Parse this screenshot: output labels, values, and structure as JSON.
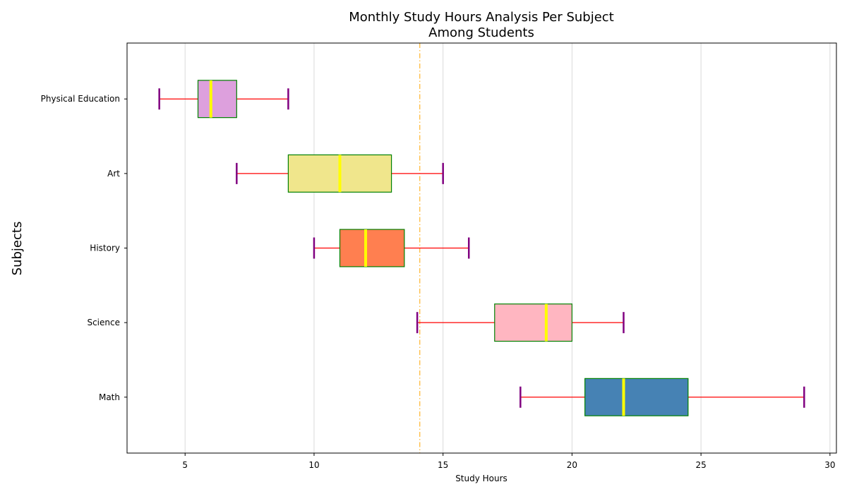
{
  "chart_data": {
    "type": "boxplot",
    "orientation": "horizontal",
    "title_lines": [
      "Monthly Study Hours Analysis Per Subject",
      "Among Students"
    ],
    "xlabel": "Study Hours",
    "ylabel": "Subjects",
    "xlim": [
      2.75,
      30.25
    ],
    "xticks": [
      5,
      10,
      15,
      20,
      25,
      30
    ],
    "grid": "vertical",
    "reference_line": {
      "x": 14.1,
      "color": "#ffa500",
      "style": "dash-dot"
    },
    "colors": {
      "median": "#ffff00",
      "whisker": "#ff0000",
      "cap": "#800080",
      "box_edge": "#008000",
      "grid": "#d9d9d9"
    },
    "series": [
      {
        "name": "Math",
        "whislo": 18,
        "q1": 20.5,
        "median": 22,
        "q3": 24.5,
        "whishi": 29,
        "color": "#4682b4"
      },
      {
        "name": "Science",
        "whislo": 14,
        "q1": 17,
        "median": 19,
        "q3": 20,
        "whishi": 22,
        "color": "#ffb6c1"
      },
      {
        "name": "History",
        "whislo": 10,
        "q1": 11,
        "median": 12,
        "q3": 13.5,
        "whishi": 16,
        "color": "#ff7f50"
      },
      {
        "name": "Art",
        "whislo": 7,
        "q1": 9,
        "median": 11,
        "q3": 13,
        "whishi": 15,
        "color": "#f0e68c"
      },
      {
        "name": "Physical Education",
        "whislo": 4,
        "q1": 5.5,
        "median": 6,
        "q3": 7,
        "whishi": 9,
        "color": "#dda0dd"
      }
    ]
  }
}
